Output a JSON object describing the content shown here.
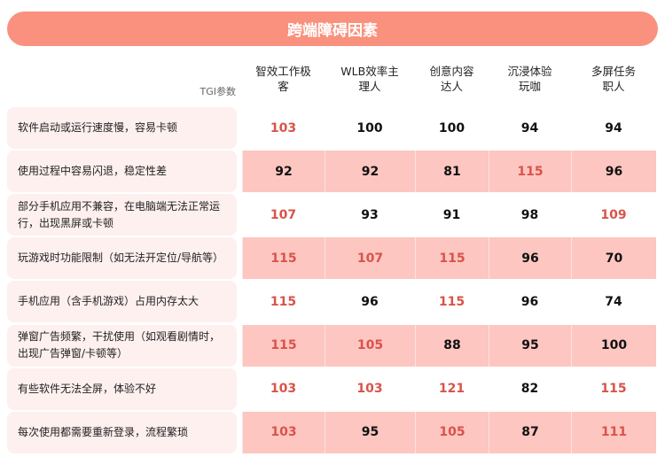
{
  "title": "跨端障碍因素",
  "row_header_label": "TGI参数",
  "columns": [
    "智效工作极客",
    "WLB效率主理人",
    "创意内容达人",
    "沉浸体验玩咖",
    "多屏任务职人"
  ],
  "rows": [
    {
      "label": "软件启动或运行速度慢，容易卡顿",
      "values": [
        103,
        100,
        100,
        94,
        94
      ]
    },
    {
      "label": "使用过程中容易闪退，稳定性差",
      "values": [
        92,
        92,
        81,
        115,
        96
      ]
    },
    {
      "label": "部分手机应用不兼容，在电脑端无法正常运行，出现黑屏或卡顿",
      "values": [
        107,
        93,
        91,
        98,
        109
      ]
    },
    {
      "label": "玩游戏时功能限制（如无法开定位/导航等）",
      "values": [
        115,
        107,
        115,
        96,
        70
      ]
    },
    {
      "label": "手机应用（含手机游戏）占用内存太大",
      "values": [
        115,
        96,
        115,
        96,
        74
      ]
    },
    {
      "label": "弹窗广告频繁，干扰使用（如观看剧情时，出现广告弹窗/卡顿等）",
      "values": [
        115,
        105,
        88,
        95,
        100
      ]
    },
    {
      "label": "有些软件无法全屏，体验不好",
      "values": [
        103,
        103,
        121,
        82,
        115
      ]
    },
    {
      "label": "每次使用都需要重新登录，流程繁琐",
      "values": [
        103,
        95,
        105,
        87,
        111
      ]
    }
  ],
  "colors": {
    "banner": "#f9917e",
    "highlight_text": "#d9534a",
    "stripe": "#fdc6c1",
    "label_bg": "#fdf0ef"
  }
}
